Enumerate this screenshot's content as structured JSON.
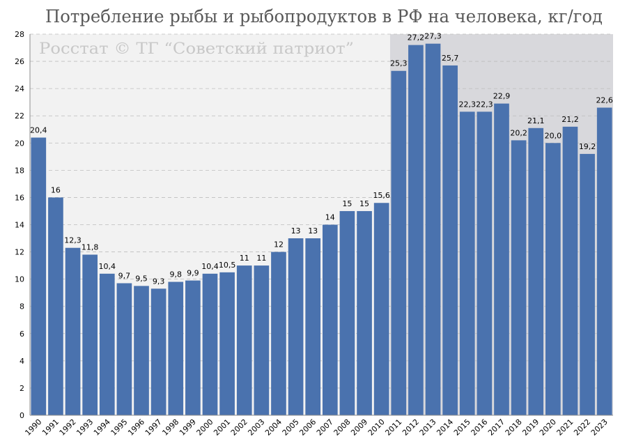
{
  "chart_data": {
    "type": "bar",
    "title": "Потребление рыбы и рыбопродуктов в РФ на человека, кг/год",
    "watermark": "Росстат © ТГ “Советский патриот”",
    "categories": [
      "1990",
      "1991",
      "1992",
      "1993",
      "1994",
      "1995",
      "1996",
      "1997",
      "1998",
      "1999",
      "2000",
      "2001",
      "2002",
      "2003",
      "2004",
      "2005",
      "2006",
      "2007",
      "2008",
      "2009",
      "2010",
      "2011",
      "2012",
      "2013",
      "2014",
      "2015",
      "2016",
      "2017",
      "2018",
      "2019",
      "2020",
      "2021",
      "2022",
      "2023"
    ],
    "values": [
      20.4,
      16,
      12.3,
      11.8,
      10.4,
      9.7,
      9.5,
      9.3,
      9.8,
      9.9,
      10.4,
      10.5,
      11,
      11,
      12,
      13,
      13,
      14,
      15,
      15,
      15.6,
      25.3,
      27.2,
      27.3,
      25.7,
      22.3,
      22.3,
      22.9,
      20.2,
      21.1,
      20.0,
      21.2,
      19.2,
      22.6
    ],
    "data_labels": [
      "20,4",
      "16",
      "12,3",
      "11,8",
      "10,4",
      "9,7",
      "9,5",
      "9,3",
      "9,8",
      "9,9",
      "10,4",
      "10,5",
      "11",
      "11",
      "12",
      "13",
      "13",
      "14",
      "15",
      "15",
      "15,6",
      "25,3",
      "27,2",
      "27,3",
      "25,7",
      "22,3",
      "22,3",
      "22,9",
      "20,2",
      "21,1",
      "20,0",
      "21,2",
      "19,2",
      "22,6"
    ],
    "yticks": [
      "0",
      "2",
      "4",
      "6",
      "8",
      "10",
      "12",
      "14",
      "16",
      "18",
      "20",
      "22",
      "24",
      "26",
      "28"
    ],
    "ylim": [
      0,
      28
    ],
    "grid": true,
    "bar_color": "#4a72ae",
    "shaded_region_1_color": "#f2f2f2",
    "shaded_region_2_color": "#d8d8dc",
    "shaded_region_2_start": "2011"
  }
}
